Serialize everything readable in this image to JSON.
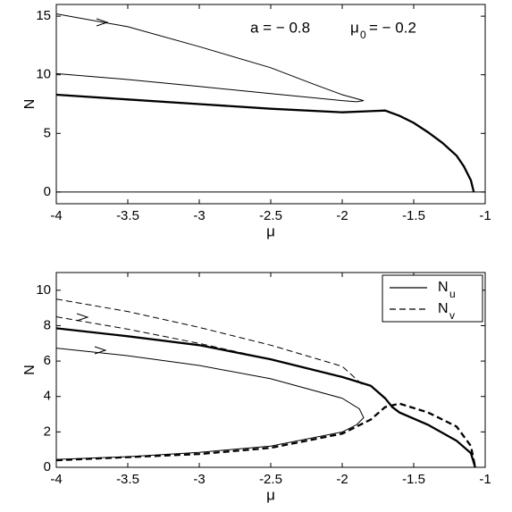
{
  "chart_data": [
    {
      "type": "line",
      "xlabel": "μ",
      "ylabel": "N",
      "xlim": [
        -4,
        -1
      ],
      "xticks": [
        -4,
        -3.5,
        -3,
        -2.5,
        -2,
        -1.5,
        -1
      ],
      "ylim": [
        -1,
        16
      ],
      "yticks": [
        0,
        5,
        10,
        15
      ],
      "annotation": {
        "a_text": "a = − 0.8",
        "mu": "μ",
        "mu_sub": "0",
        "mu_text": "= − 0.2"
      },
      "series": [
        {
          "style": "solid",
          "width": "thin",
          "color": "#000000",
          "x": [
            -4,
            -3.5,
            -3,
            -2.5,
            -2.2,
            -2,
            -1.85,
            -1.9,
            -2,
            -2.5,
            -3,
            -3.5,
            -4
          ],
          "values": [
            15.2,
            14.1,
            12.4,
            10.6,
            9.2,
            8.3,
            7.8,
            7.7,
            7.8,
            8.4,
            9.0,
            9.6,
            10.1
          ]
        },
        {
          "style": "solid",
          "width": "thick",
          "color": "#000000",
          "x": [
            -4,
            -3.5,
            -3,
            -2.5,
            -2,
            -1.8,
            -1.7,
            -1.6,
            -1.5,
            -1.4,
            -1.3,
            -1.2,
            -1.15,
            -1.1,
            -1.08
          ],
          "values": [
            8.3,
            7.9,
            7.5,
            7.1,
            6.8,
            6.9,
            6.95,
            6.5,
            5.9,
            5.1,
            4.2,
            3.1,
            2.2,
            1.0,
            0
          ]
        },
        {
          "style": "solid",
          "width": "thin",
          "color": "#000000",
          "x": [
            -4,
            -1
          ],
          "values": [
            0,
            0
          ]
        }
      ]
    },
    {
      "type": "line",
      "xlabel": "μ",
      "ylabel": "N",
      "xlim": [
        -4,
        -1
      ],
      "xticks": [
        -4,
        -3.5,
        -3,
        -2.5,
        -2,
        -1.5,
        -1
      ],
      "ylim": [
        0,
        11
      ],
      "yticks": [
        0,
        2,
        4,
        6,
        8,
        10
      ],
      "legend_loc": "upper right",
      "legend": [
        {
          "text": "N",
          "subscript": "u",
          "style": "solid"
        },
        {
          "text": "N",
          "subscript": "v",
          "style": "dashed"
        }
      ],
      "series": [
        {
          "style": "solid",
          "width": "thin",
          "color": "#000000",
          "x": [
            -4,
            -3.5,
            -3,
            -2.5,
            -2,
            -1.88,
            -1.85,
            -1.9,
            -2,
            -2.5,
            -3,
            -3.5,
            -4
          ],
          "values": [
            6.73,
            6.3,
            5.75,
            5.0,
            3.9,
            3.3,
            2.8,
            2.4,
            2.0,
            1.2,
            0.85,
            0.6,
            0.45
          ]
        },
        {
          "style": "solid",
          "width": "thick",
          "color": "#000000",
          "x": [
            -4,
            -3.5,
            -3,
            -2.5,
            -2,
            -1.8,
            -1.7,
            -1.65,
            -1.6,
            -1.4,
            -1.2,
            -1.1,
            -1.07
          ],
          "values": [
            7.85,
            7.4,
            6.9,
            6.1,
            5.1,
            4.6,
            3.9,
            3.4,
            3.1,
            2.4,
            1.5,
            0.8,
            0
          ]
        },
        {
          "style": "dashed",
          "width": "thin",
          "color": "#000000",
          "x": [
            -4,
            -3.5,
            -3,
            -2.5,
            -2,
            -1.85
          ],
          "values": [
            9.5,
            8.8,
            7.9,
            6.9,
            5.7,
            4.6
          ]
        },
        {
          "style": "dashed",
          "width": "thin",
          "color": "#000000",
          "x": [
            -4,
            -3.5,
            -3,
            -2.5,
            -2,
            -1.85
          ],
          "values": [
            8.5,
            7.8,
            7.0,
            6.1,
            5.1,
            4.7
          ]
        },
        {
          "style": "dashed",
          "width": "thick",
          "color": "#000000",
          "x": [
            -4,
            -3,
            -2.5,
            -2,
            -1.9,
            -1.8,
            -1.7,
            -1.6,
            -1.4,
            -1.2,
            -1.1,
            -1.07
          ],
          "values": [
            0.4,
            0.75,
            1.1,
            1.9,
            2.3,
            2.7,
            3.4,
            3.6,
            3.1,
            2.3,
            1.2,
            0
          ]
        }
      ]
    }
  ]
}
